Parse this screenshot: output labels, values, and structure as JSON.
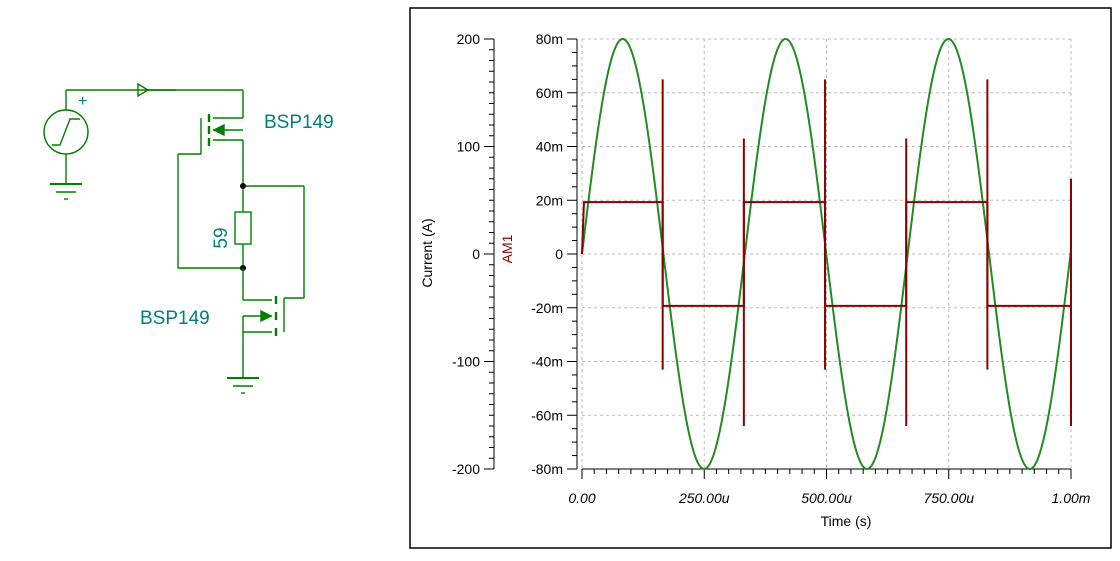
{
  "schematic": {
    "source_polarity": "+",
    "upper_mosfet_label": "BSP149",
    "lower_mosfet_label": "BSP149",
    "resistor_value": "59",
    "wire_color": "#008000",
    "label_color": "#008080"
  },
  "chart_data": {
    "type": "line",
    "xlabel": "Time (s)",
    "ylabel_left": "Current (A)",
    "ylabel_right": "AM1",
    "x_ticks": [
      "0.00",
      "250.00u",
      "500.00u",
      "750.00u",
      "1.00m"
    ],
    "x_tick_values": [
      0,
      0.00025,
      0.0005,
      0.00075,
      0.001
    ],
    "xlim": [
      0,
      0.001
    ],
    "y_left_ticks": [
      "200",
      "100",
      "0",
      "-100",
      "-200"
    ],
    "y_left_tick_values": [
      200,
      100,
      0,
      -100,
      -200
    ],
    "ylim_left": [
      -200,
      200
    ],
    "y_right_ticks": [
      "80m",
      "60m",
      "40m",
      "20m",
      "0",
      "-20m",
      "-40m",
      "-60m",
      "-80m"
    ],
    "y_right_tick_values": [
      0.08,
      0.06,
      0.04,
      0.02,
      0,
      -0.02,
      -0.04,
      -0.06,
      -0.08
    ],
    "ylim_right": [
      -0.08,
      0.08
    ],
    "grid": true,
    "series": [
      {
        "axis": "right",
        "color": "#228B22",
        "shape": "sine",
        "amplitude": 0.08,
        "period": 0.000333,
        "phase": 0
      },
      {
        "axis": "right",
        "color": "#8B0000",
        "shape": "square",
        "level": 0.0193,
        "points": [
          [
            0,
            0
          ],
          [
            4e-06,
            0.0193
          ],
          [
            0.000165,
            0.0193
          ],
          [
            0.000165,
            -0.0193
          ],
          [
            0.000331,
            -0.0193
          ],
          [
            0.000331,
            0.0193
          ],
          [
            0.000497,
            0.0193
          ],
          [
            0.000497,
            -0.0193
          ],
          [
            0.000663,
            -0.0193
          ],
          [
            0.000663,
            0.0193
          ],
          [
            0.000829,
            0.0193
          ],
          [
            0.000829,
            -0.0193
          ],
          [
            0.001,
            -0.0193
          ]
        ],
        "spikes": [
          {
            "x": 0.000165,
            "max": 0.065,
            "min": -0.043
          },
          {
            "x": 0.000331,
            "max": 0.043,
            "min": -0.064
          },
          {
            "x": 0.000497,
            "max": 0.065,
            "min": -0.043
          },
          {
            "x": 0.000663,
            "max": 0.043,
            "min": -0.064
          },
          {
            "x": 0.000829,
            "max": 0.065,
            "min": -0.043
          },
          {
            "x": 0.001,
            "max": 0.028,
            "min": -0.064
          }
        ]
      }
    ]
  }
}
